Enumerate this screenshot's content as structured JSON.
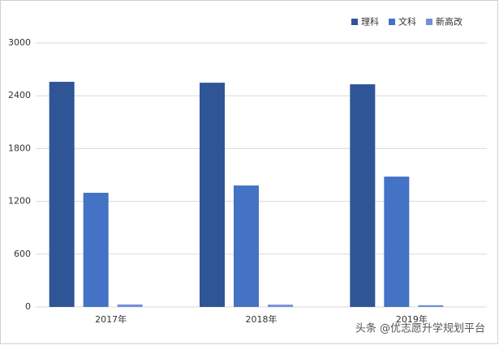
{
  "chart_data": {
    "type": "bar",
    "categories": [
      "2017年",
      "2018年",
      "2019年"
    ],
    "series": [
      {
        "name": "理科",
        "color": "#2f5597",
        "values": [
          2558,
          2548,
          2530
        ]
      },
      {
        "name": "文科",
        "color": "#4472c4",
        "values": [
          1297,
          1380,
          1481
        ]
      },
      {
        "name": "新高改",
        "color": "#7190d8",
        "values": [
          28,
          26,
          20
        ]
      }
    ],
    "ylim": [
      0,
      3000
    ],
    "yticks": [
      0,
      600,
      1200,
      1800,
      2400,
      3000
    ],
    "grid": true,
    "legend": "top-right",
    "annotation": "头条 @优志愿升学规划平台"
  }
}
